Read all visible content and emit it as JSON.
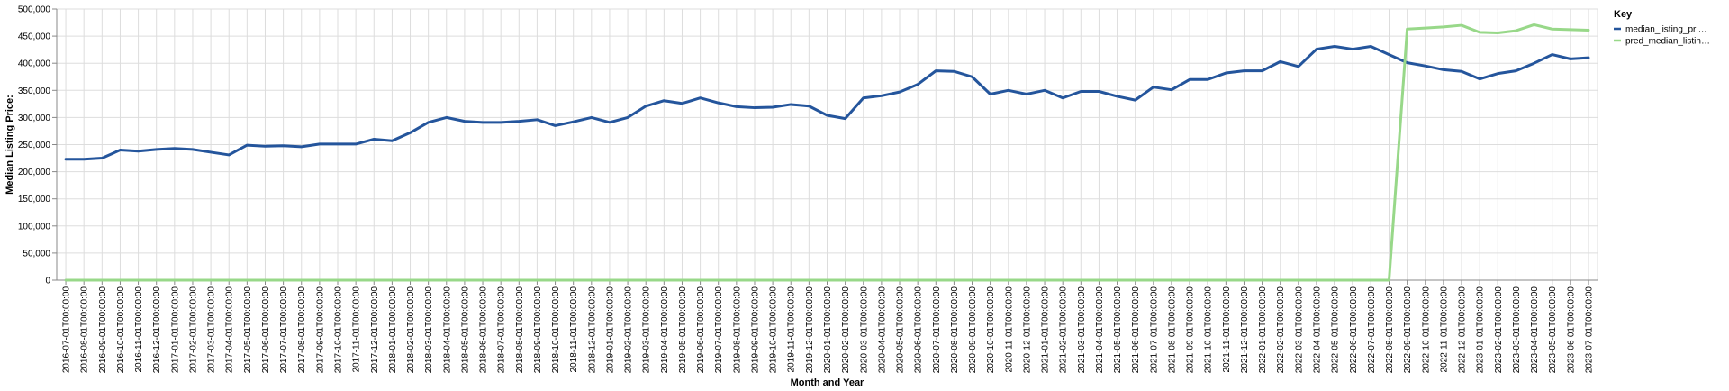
{
  "chart_data": {
    "type": "line",
    "xlabel": "Month and Year",
    "ylabel": "Median Listing Price:",
    "ylim": [
      0,
      500000
    ],
    "yticks": [
      0,
      50000,
      100000,
      150000,
      200000,
      250000,
      300000,
      350000,
      400000,
      450000,
      500000
    ],
    "ytick_labels": [
      "0",
      "50,000",
      "100,000",
      "150,000",
      "200,000",
      "250,000",
      "300,000",
      "350,000",
      "400,000",
      "450,000",
      "500,000"
    ],
    "grid": true,
    "legend_title": "Key",
    "legend_position": "top-right",
    "x": [
      "2016-07-01T00:00:00",
      "2016-08-01T00:00:00",
      "2016-09-01T00:00:00",
      "2016-10-01T00:00:00",
      "2016-11-01T00:00:00",
      "2016-12-01T00:00:00",
      "2017-01-01T00:00:00",
      "2017-02-01T00:00:00",
      "2017-03-01T00:00:00",
      "2017-04-01T00:00:00",
      "2017-05-01T00:00:00",
      "2017-06-01T00:00:00",
      "2017-07-01T00:00:00",
      "2017-08-01T00:00:00",
      "2017-09-01T00:00:00",
      "2017-10-01T00:00:00",
      "2017-11-01T00:00:00",
      "2017-12-01T00:00:00",
      "2018-01-01T00:00:00",
      "2018-02-01T00:00:00",
      "2018-03-01T00:00:00",
      "2018-04-01T00:00:00",
      "2018-05-01T00:00:00",
      "2018-06-01T00:00:00",
      "2018-07-01T00:00:00",
      "2018-08-01T00:00:00",
      "2018-09-01T00:00:00",
      "2018-10-01T00:00:00",
      "2018-11-01T00:00:00",
      "2018-12-01T00:00:00",
      "2019-01-01T00:00:00",
      "2019-02-01T00:00:00",
      "2019-03-01T00:00:00",
      "2019-04-01T00:00:00",
      "2019-05-01T00:00:00",
      "2019-06-01T00:00:00",
      "2019-07-01T00:00:00",
      "2019-08-01T00:00:00",
      "2019-09-01T00:00:00",
      "2019-10-01T00:00:00",
      "2019-11-01T00:00:00",
      "2019-12-01T00:00:00",
      "2020-01-01T00:00:00",
      "2020-02-01T00:00:00",
      "2020-03-01T00:00:00",
      "2020-04-01T00:00:00",
      "2020-05-01T00:00:00",
      "2020-06-01T00:00:00",
      "2020-07-01T00:00:00",
      "2020-08-01T00:00:00",
      "2020-09-01T00:00:00",
      "2020-10-01T00:00:00",
      "2020-11-01T00:00:00",
      "2020-12-01T00:00:00",
      "2021-01-01T00:00:00",
      "2021-02-01T00:00:00",
      "2021-03-01T00:00:00",
      "2021-04-01T00:00:00",
      "2021-05-01T00:00:00",
      "2021-06-01T00:00:00",
      "2021-07-01T00:00:00",
      "2021-08-01T00:00:00",
      "2021-09-01T00:00:00",
      "2021-10-01T00:00:00",
      "2021-11-01T00:00:00",
      "2021-12-01T00:00:00",
      "2022-01-01T00:00:00",
      "2022-02-01T00:00:00",
      "2022-03-01T00:00:00",
      "2022-04-01T00:00:00",
      "2022-05-01T00:00:00",
      "2022-06-01T00:00:00",
      "2022-07-01T00:00:00",
      "2022-08-01T00:00:00",
      "2022-09-01T00:00:00",
      "2022-10-01T00:00:00",
      "2022-11-01T00:00:00",
      "2022-12-01T00:00:00",
      "2023-01-01T00:00:00",
      "2023-02-01T00:00:00",
      "2023-03-01T00:00:00",
      "2023-04-01T00:00:00",
      "2023-05-01T00:00:00",
      "2023-06-01T00:00:00",
      "2023-07-01T00:00:00"
    ],
    "series": [
      {
        "name": "median_listing_pri…",
        "color": "#24559c",
        "values": [
          223000,
          223000,
          225000,
          240000,
          238000,
          241000,
          243000,
          241000,
          236000,
          231000,
          249000,
          247000,
          248000,
          246000,
          251000,
          251000,
          251000,
          260000,
          257000,
          272000,
          291000,
          300000,
          293000,
          291000,
          291000,
          293000,
          296000,
          285000,
          292000,
          300000,
          291000,
          300000,
          321000,
          331000,
          326000,
          336000,
          327000,
          320000,
          318000,
          319000,
          324000,
          321000,
          304000,
          298000,
          336000,
          340000,
          347000,
          361000,
          386000,
          385000,
          375000,
          343000,
          350000,
          343000,
          350000,
          336000,
          348000,
          348000,
          339000,
          332000,
          356000,
          351000,
          370000,
          370000,
          382000,
          386000,
          386000,
          403000,
          394000,
          426000,
          431000,
          426000,
          431000,
          416000,
          401000,
          395000,
          388000,
          385000,
          371000,
          381000,
          386000,
          400000,
          416000,
          408000,
          410000
        ]
      },
      {
        "name": "pred_median_listin…",
        "color": "#98d889",
        "values": [
          0,
          0,
          0,
          0,
          0,
          0,
          0,
          0,
          0,
          0,
          0,
          0,
          0,
          0,
          0,
          0,
          0,
          0,
          0,
          0,
          0,
          0,
          0,
          0,
          0,
          0,
          0,
          0,
          0,
          0,
          0,
          0,
          0,
          0,
          0,
          0,
          0,
          0,
          0,
          0,
          0,
          0,
          0,
          0,
          0,
          0,
          0,
          0,
          0,
          0,
          0,
          0,
          0,
          0,
          0,
          0,
          0,
          0,
          0,
          0,
          0,
          0,
          0,
          0,
          0,
          0,
          0,
          0,
          0,
          0,
          0,
          0,
          0,
          0,
          463000,
          465000,
          467000,
          470000,
          457000,
          456000,
          460000,
          471000,
          463000,
          462000,
          461000
        ]
      }
    ]
  }
}
